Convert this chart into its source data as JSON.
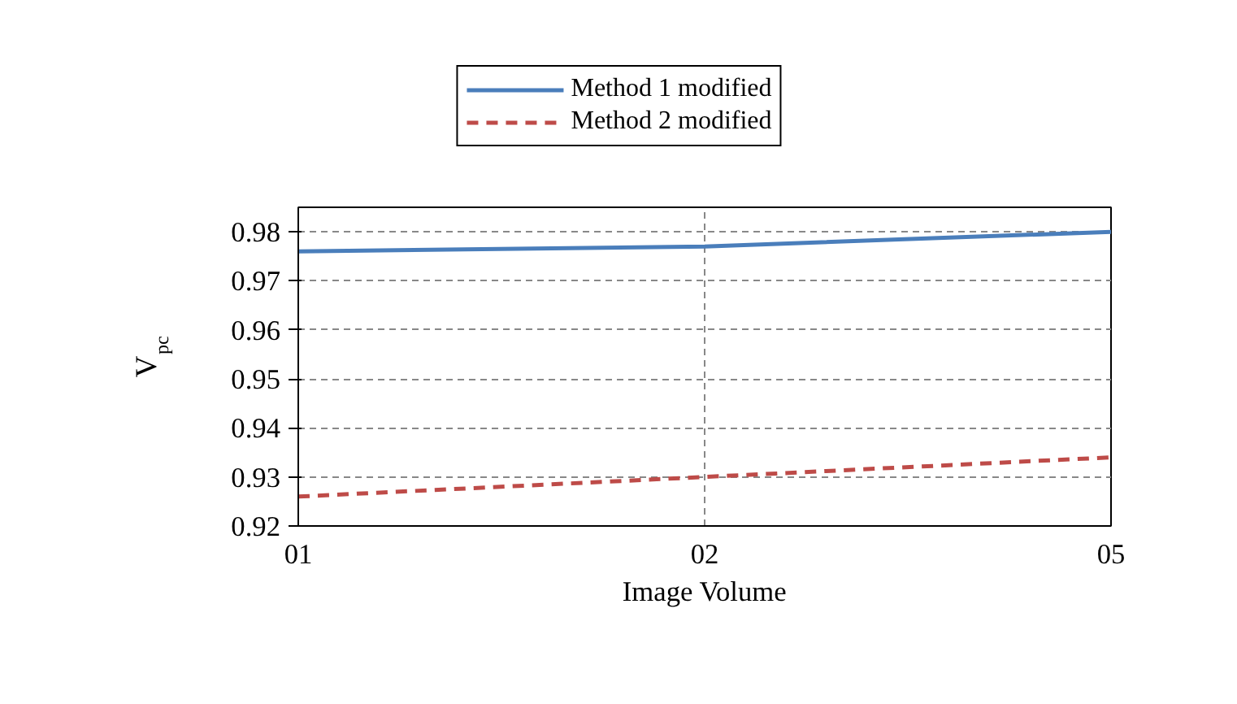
{
  "chart_data": {
    "type": "line",
    "xlabel": "Image Volume",
    "ylabel": "V$_{pc}$",
    "categories": [
      "01",
      "02",
      "05"
    ],
    "series": [
      {
        "name": "Method 1 modified",
        "color": "#4a7ebb",
        "values": [
          0.976,
          0.977,
          0.98
        ],
        "line_style": "solid"
      },
      {
        "name": "Method 2 modified",
        "color": "#be4b48",
        "values": [
          0.926,
          0.93,
          0.934
        ],
        "line_style": "dashed"
      }
    ],
    "ylim": [
      0.92,
      0.985
    ],
    "yticks": [
      0.92,
      0.93,
      0.94,
      0.95,
      0.96,
      0.97,
      0.98
    ],
    "grid": true,
    "legend": "top",
    "marker": "none"
  }
}
